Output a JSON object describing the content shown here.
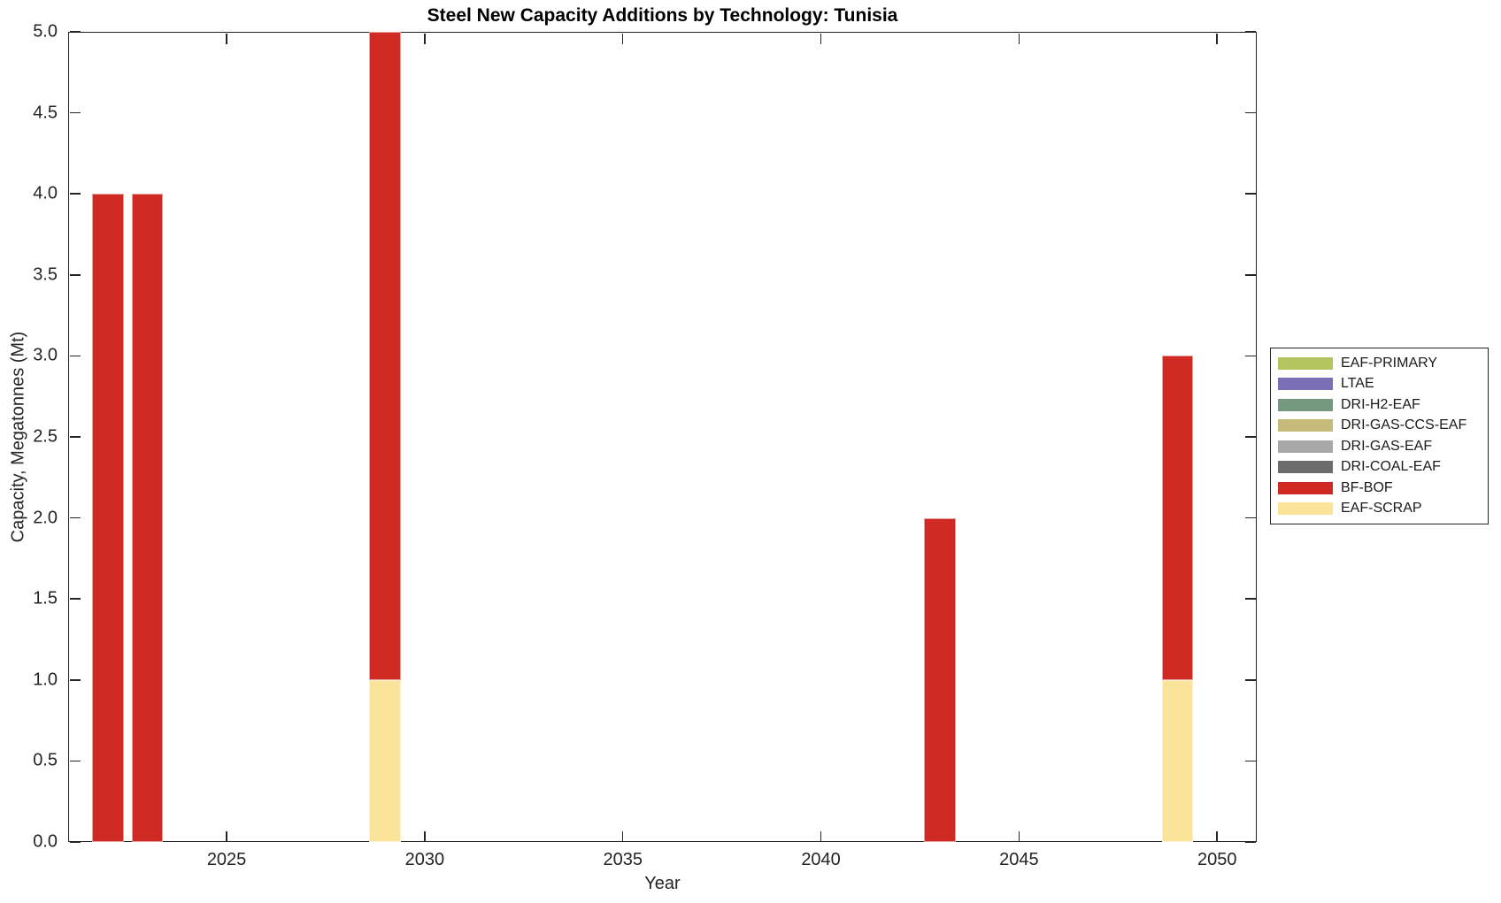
{
  "chart_data": {
    "type": "bar",
    "stacked": true,
    "title": "Steel New Capacity Additions by Technology: Tunisia",
    "xlabel": "Year",
    "ylabel": "Capacity, Megatonnes (Mt)",
    "xlim": [
      2021,
      2051
    ],
    "ylim": [
      0,
      5
    ],
    "xticks": [
      2025,
      2030,
      2035,
      2040,
      2045,
      2050
    ],
    "yticks": [
      0,
      0.5,
      1,
      1.5,
      2,
      2.5,
      3,
      3.5,
      4,
      4.5,
      5
    ],
    "ytick_decimals": 1,
    "grid": false,
    "legend_position": "east-outside",
    "bar_width_years": 0.8,
    "x": [
      2022,
      2023,
      2029,
      2043,
      2049
    ],
    "series": [
      {
        "name": "EAF-PRIMARY",
        "color": "#b4c45f",
        "values": [
          0,
          0,
          0,
          0,
          0
        ]
      },
      {
        "name": "LTAE",
        "color": "#7b70b7",
        "values": [
          0,
          0,
          0,
          0,
          0
        ]
      },
      {
        "name": "DRI-H2-EAF",
        "color": "#74997f",
        "values": [
          0,
          0,
          0,
          0,
          0
        ]
      },
      {
        "name": "DRI-GAS-CCS-EAF",
        "color": "#c5ba79",
        "values": [
          0,
          0,
          0,
          0,
          0
        ]
      },
      {
        "name": "DRI-GAS-EAF",
        "color": "#a8a8a8",
        "values": [
          0,
          0,
          0,
          0,
          0
        ]
      },
      {
        "name": "DRI-COAL-EAF",
        "color": "#6c6c6c",
        "values": [
          0,
          0,
          0,
          0,
          0
        ]
      },
      {
        "name": "BF-BOF",
        "color": "#cf2b24",
        "values": [
          4,
          4,
          4,
          2,
          2
        ]
      },
      {
        "name": "EAF-SCRAP",
        "color": "#fce39a",
        "values": [
          0,
          0,
          1,
          0,
          1
        ]
      }
    ],
    "stack_order_bottom_to_top": [
      "EAF-SCRAP",
      "BF-BOF",
      "DRI-COAL-EAF",
      "DRI-GAS-EAF",
      "DRI-GAS-CCS-EAF",
      "DRI-H2-EAF",
      "LTAE",
      "EAF-PRIMARY"
    ],
    "axis_color": "#242424"
  }
}
